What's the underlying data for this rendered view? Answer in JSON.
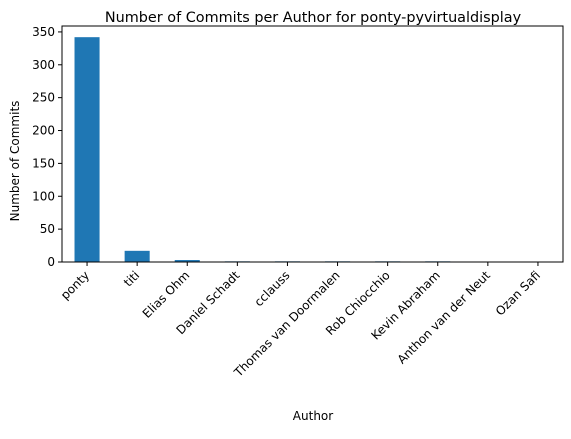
{
  "chart_data": {
    "type": "bar",
    "title": "Number of Commits per Author for ponty-pyvirtualdisplay",
    "xlabel": "Author",
    "ylabel": "Number of Commits",
    "categories": [
      "ponty",
      "titi",
      "Elias Ohm",
      "Daniel Schadt",
      "cclauss",
      "Thomas van Doormalen",
      "Rob Chiocchio",
      "Kevin Abraham",
      "Anthon van der Neut",
      "Ozan Safi"
    ],
    "values": [
      342,
      17,
      3,
      1,
      1,
      1,
      1,
      1,
      0,
      0
    ],
    "ylim": [
      0,
      359
    ],
    "yticks": [
      0,
      50,
      100,
      150,
      200,
      250,
      300,
      350
    ],
    "grid": false,
    "legend": "none",
    "bar_color": "#1f77b4"
  }
}
